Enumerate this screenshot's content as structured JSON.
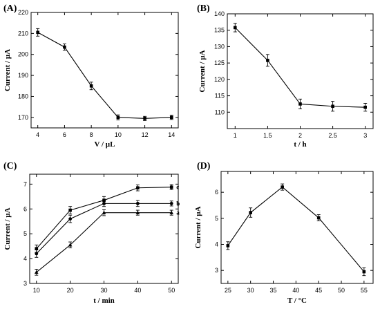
{
  "chart_data": [
    {
      "type": "line",
      "panel": "(A)",
      "xlabel": "V / µL",
      "ylabel": "Current / µA",
      "xlim": [
        3.5,
        14.5
      ],
      "ylim": [
        165,
        220
      ],
      "xticks": [
        4,
        6,
        8,
        10,
        12,
        14
      ],
      "yticks": [
        170,
        180,
        190,
        200,
        210,
        220
      ],
      "series": [
        {
          "name": "",
          "x": [
            4,
            6,
            8,
            10,
            12,
            14
          ],
          "values": [
            210.5,
            203.5,
            185.0,
            170.0,
            169.5,
            170.0
          ],
          "errors": [
            1.8,
            1.5,
            1.8,
            1.2,
            1.0,
            1.0
          ]
        }
      ]
    },
    {
      "type": "line",
      "panel": "(B)",
      "xlabel": "t / h",
      "ylabel": "Current / µA",
      "xlim": [
        0.88,
        3.12
      ],
      "ylim": [
        105,
        140
      ],
      "xticks": [
        1.0,
        1.5,
        2.0,
        2.5,
        3.0
      ],
      "yticks": [
        110,
        115,
        120,
        125,
        130,
        135,
        140
      ],
      "series": [
        {
          "name": "",
          "x": [
            1.0,
            1.5,
            2.0,
            2.5,
            3.0
          ],
          "values": [
            135.8,
            125.8,
            112.5,
            111.8,
            111.5
          ],
          "errors": [
            1.3,
            1.8,
            1.5,
            1.5,
            1.2
          ]
        }
      ]
    },
    {
      "type": "line",
      "panel": "(C)",
      "xlabel": "t / min",
      "ylabel": "Current / µA",
      "xlim": [
        8,
        52
      ],
      "ylim": [
        3,
        7.4
      ],
      "xticks": [
        10,
        20,
        30,
        40,
        50
      ],
      "yticks": [
        3,
        4,
        5,
        6,
        7
      ],
      "series": [
        {
          "name": "c",
          "x": [
            10,
            20,
            30,
            40,
            50
          ],
          "values": [
            4.4,
            5.95,
            6.35,
            6.85,
            6.88
          ],
          "errors": [
            0.15,
            0.15,
            0.15,
            0.12,
            0.1
          ]
        },
        {
          "name": "b",
          "x": [
            10,
            20,
            30,
            40,
            50
          ],
          "values": [
            4.2,
            5.6,
            6.22,
            6.22,
            6.22
          ],
          "errors": [
            0.15,
            0.15,
            0.12,
            0.12,
            0.1
          ]
        },
        {
          "name": "a",
          "x": [
            10,
            20,
            30,
            40,
            50
          ],
          "values": [
            3.45,
            4.55,
            5.85,
            5.85,
            5.85
          ],
          "errors": [
            0.12,
            0.12,
            0.12,
            0.1,
            0.1
          ]
        }
      ]
    },
    {
      "type": "line",
      "panel": "(D)",
      "xlabel": "T / °C",
      "ylabel": "Current / µA",
      "xlim": [
        23.5,
        57
      ],
      "ylim": [
        2.5,
        6.8
      ],
      "xticks": [
        25,
        30,
        35,
        40,
        45,
        50,
        55
      ],
      "yticks": [
        3,
        4,
        5,
        6
      ],
      "series": [
        {
          "name": "",
          "x": [
            25,
            30,
            37,
            45,
            55
          ],
          "values": [
            3.95,
            5.22,
            6.2,
            5.02,
            2.95
          ],
          "errors": [
            0.15,
            0.18,
            0.12,
            0.12,
            0.15
          ]
        }
      ]
    }
  ]
}
